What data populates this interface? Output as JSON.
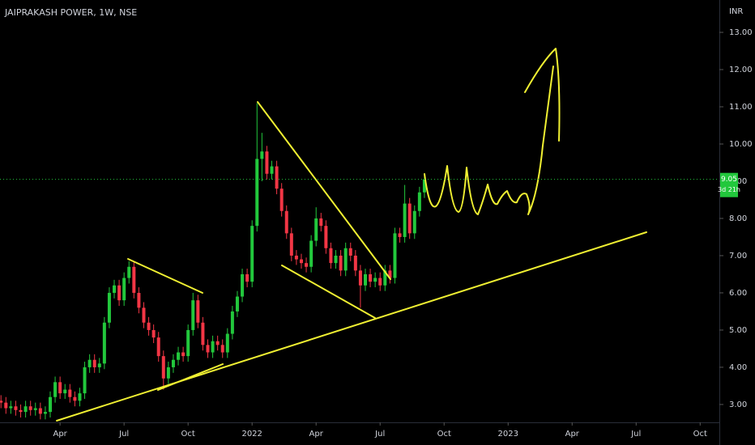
{
  "chart_data": {
    "type": "candlestick",
    "title": "JAIPRAKASH POWER, 1W, NSE",
    "currency": "INR",
    "x": [
      1,
      2,
      3,
      4,
      5,
      6,
      7,
      8,
      9,
      10,
      11,
      12,
      13,
      14,
      15,
      16,
      17,
      18,
      19,
      20,
      21,
      22,
      23,
      24,
      25,
      26,
      27,
      28,
      29,
      30,
      31,
      32,
      33,
      34,
      35,
      36,
      37,
      38,
      39,
      40,
      41,
      42,
      43,
      44,
      45,
      46,
      47,
      48,
      49,
      50,
      51,
      52,
      53,
      54,
      55,
      56,
      57,
      58,
      59,
      60,
      61,
      62,
      63,
      64,
      65,
      66,
      67,
      68,
      69,
      70,
      71,
      72,
      73,
      74,
      75,
      76,
      77,
      78,
      79,
      80,
      81,
      82,
      83,
      84,
      85,
      86,
      87
    ],
    "open": [
      3.1,
      3.05,
      2.9,
      2.95,
      2.85,
      2.8,
      2.95,
      2.85,
      2.9,
      2.75,
      2.8,
      3.2,
      3.6,
      3.3,
      3.4,
      3.2,
      3.1,
      3.3,
      4.0,
      4.2,
      4.0,
      4.1,
      5.2,
      6.0,
      6.2,
      5.8,
      6.4,
      6.7,
      6.0,
      5.6,
      5.2,
      5.0,
      4.8,
      4.3,
      3.7,
      4.0,
      4.2,
      4.4,
      4.3,
      5.0,
      5.8,
      5.2,
      4.6,
      4.4,
      4.7,
      4.6,
      4.4,
      4.9,
      5.5,
      5.9,
      6.5,
      6.3,
      7.8,
      9.6,
      9.8,
      9.2,
      9.4,
      8.8,
      8.2,
      7.6,
      7.0,
      6.9,
      6.8,
      6.7,
      7.4,
      8.0,
      7.8,
      7.2,
      6.8,
      7.0,
      6.6,
      7.2,
      7.0,
      6.6,
      6.2,
      6.5,
      6.3,
      6.4,
      6.2,
      6.6,
      6.4,
      7.6,
      7.5,
      8.4,
      7.6,
      8.2,
      8.7
    ],
    "high": [
      3.25,
      3.2,
      3.1,
      3.1,
      3.0,
      3.1,
      3.1,
      3.05,
      3.05,
      2.95,
      3.35,
      3.75,
      3.75,
      3.55,
      3.55,
      3.35,
      3.45,
      4.15,
      4.35,
      4.35,
      4.25,
      5.35,
      6.15,
      6.35,
      6.35,
      6.55,
      6.85,
      6.85,
      6.15,
      5.75,
      5.35,
      5.15,
      4.95,
      4.45,
      4.15,
      4.35,
      4.55,
      4.55,
      5.15,
      6.0,
      5.95,
      5.35,
      4.75,
      4.85,
      4.85,
      4.75,
      5.05,
      5.65,
      6.05,
      6.65,
      6.65,
      7.95,
      11.1,
      10.3,
      9.95,
      9.55,
      9.55,
      8.95,
      8.35,
      7.75,
      7.15,
      7.05,
      6.95,
      7.55,
      8.3,
      8.15,
      7.95,
      7.35,
      7.15,
      7.15,
      7.35,
      7.35,
      7.15,
      6.75,
      6.65,
      6.65,
      6.55,
      6.55,
      6.75,
      6.75,
      7.75,
      7.75,
      8.9,
      8.55,
      8.35,
      8.85,
      9.2
    ],
    "low": [
      2.9,
      2.75,
      2.75,
      2.7,
      2.65,
      2.65,
      2.7,
      2.7,
      2.6,
      2.6,
      2.65,
      3.05,
      3.15,
      3.15,
      3.05,
      2.95,
      2.95,
      3.15,
      3.85,
      3.85,
      3.85,
      3.95,
      5.05,
      5.85,
      5.65,
      5.65,
      6.25,
      5.85,
      5.45,
      5.05,
      4.85,
      4.65,
      4.15,
      3.4,
      3.55,
      3.85,
      4.05,
      4.15,
      4.15,
      4.85,
      5.05,
      4.45,
      4.25,
      4.25,
      4.45,
      4.25,
      4.25,
      4.75,
      5.35,
      5.75,
      6.15,
      6.15,
      7.65,
      9.0,
      9.05,
      9.05,
      8.65,
      8.05,
      7.45,
      6.85,
      6.75,
      6.65,
      6.55,
      6.55,
      7.25,
      7.65,
      7.05,
      6.65,
      6.65,
      6.45,
      6.45,
      6.85,
      6.45,
      5.6,
      6.05,
      6.15,
      6.15,
      6.05,
      6.05,
      6.25,
      6.25,
      7.35,
      7.35,
      7.45,
      7.45,
      8.05,
      8.55
    ],
    "close": [
      3.05,
      2.9,
      2.95,
      2.85,
      2.8,
      2.95,
      2.85,
      2.9,
      2.75,
      2.8,
      3.2,
      3.6,
      3.3,
      3.4,
      3.2,
      3.1,
      3.3,
      4.0,
      4.2,
      4.0,
      4.1,
      5.2,
      6.0,
      6.2,
      5.8,
      6.4,
      6.7,
      6.0,
      5.6,
      5.2,
      5.0,
      4.8,
      4.3,
      3.7,
      4.0,
      4.2,
      4.4,
      4.3,
      5.0,
      5.8,
      5.2,
      4.6,
      4.4,
      4.7,
      4.6,
      4.4,
      4.9,
      5.5,
      5.9,
      6.5,
      6.3,
      7.8,
      9.6,
      9.8,
      9.2,
      9.4,
      8.8,
      8.2,
      7.6,
      7.0,
      6.9,
      6.8,
      6.7,
      7.4,
      8.0,
      7.8,
      7.2,
      6.8,
      7.0,
      6.6,
      7.2,
      7.0,
      6.6,
      6.2,
      6.5,
      6.3,
      6.4,
      6.2,
      6.6,
      6.4,
      7.6,
      7.5,
      8.4,
      7.6,
      8.2,
      8.7,
      9.05
    ],
    "up_color": "#22c83c",
    "down_color": "#f23645",
    "last_price": 9.05,
    "countdown": "3d 21h",
    "xlim": [
      0.8,
      146.9
    ],
    "xticks": [
      {
        "value": 13,
        "label": "Apr"
      },
      {
        "value": 26,
        "label": "Jul"
      },
      {
        "value": 39,
        "label": "Oct"
      },
      {
        "value": 52,
        "label": "2022"
      },
      {
        "value": 65,
        "label": "Apr"
      },
      {
        "value": 78,
        "label": "Jul"
      },
      {
        "value": 91,
        "label": "Oct"
      },
      {
        "value": 104,
        "label": "2023"
      },
      {
        "value": 117,
        "label": "Apr"
      },
      {
        "value": 130,
        "label": "Jul"
      },
      {
        "value": 143,
        "label": "Oct"
      }
    ],
    "ylim": [
      2.52,
      13.87
    ],
    "yticks": [
      {
        "value": 3,
        "label": "3.00"
      },
      {
        "value": 4,
        "label": "4.00"
      },
      {
        "value": 5,
        "label": "5.00"
      },
      {
        "value": 6,
        "label": "6.00"
      },
      {
        "value": 7,
        "label": "7.00"
      },
      {
        "value": 8,
        "label": "8.00"
      },
      {
        "value": 9,
        "label": "9.00"
      },
      {
        "value": 10,
        "label": "10.00"
      },
      {
        "value": 11,
        "label": "11.00"
      },
      {
        "value": 12,
        "label": "12.00"
      },
      {
        "value": 13,
        "label": "13.00"
      }
    ]
  }
}
